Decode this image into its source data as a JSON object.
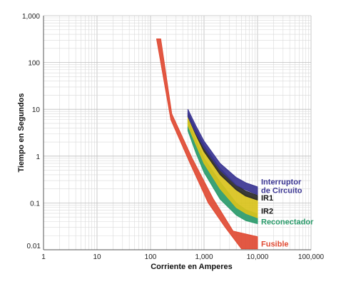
{
  "chart_data": {
    "type": "area",
    "xlabel": "Corriente en Amperes",
    "ylabel": "Tiempo en Segundos",
    "x_scale": "log",
    "y_scale": "log",
    "xlim": [
      1,
      100000
    ],
    "ylim": [
      0.01,
      1000
    ],
    "x_ticks": [
      {
        "value": 1,
        "label": "1"
      },
      {
        "value": 10,
        "label": "10"
      },
      {
        "value": 100,
        "label": "100"
      },
      {
        "value": 1000,
        "label": "1,000"
      },
      {
        "value": 10000,
        "label": "10,000"
      },
      {
        "value": 100000,
        "label": "100,000"
      }
    ],
    "y_ticks": [
      {
        "value": 1000,
        "label": "1,000"
      },
      {
        "value": 100,
        "label": "100"
      },
      {
        "value": 10,
        "label": "10"
      },
      {
        "value": 1,
        "label": "1"
      },
      {
        "value": 0.1,
        "label": "0.1"
      },
      {
        "value": 0.01,
        "label": "0.01"
      }
    ],
    "grid": true,
    "series": [
      {
        "name": "Fusible",
        "color": "#e04a33",
        "upper": [
          [
            155,
            320
          ],
          [
            250,
            8
          ],
          [
            600,
            0.9
          ],
          [
            1500,
            0.12
          ],
          [
            3500,
            0.025
          ],
          [
            10000,
            0.019
          ]
        ],
        "lower": [
          [
            130,
            320
          ],
          [
            240,
            6
          ],
          [
            550,
            0.7
          ],
          [
            1200,
            0.1
          ],
          [
            2500,
            0.03
          ],
          [
            5000,
            0.0105
          ],
          [
            10000,
            0.0105
          ]
        ]
      },
      {
        "name": "Reconectador",
        "color": "#2a9a6a",
        "upper": [
          [
            500,
            6
          ],
          [
            700,
            2.2
          ],
          [
            1000,
            0.9
          ],
          [
            2000,
            0.28
          ],
          [
            4000,
            0.1
          ],
          [
            6000,
            0.072
          ],
          [
            10000,
            0.058
          ]
        ],
        "lower": [
          [
            500,
            3.5
          ],
          [
            700,
            1.2
          ],
          [
            1000,
            0.45
          ],
          [
            2000,
            0.12
          ],
          [
            4000,
            0.055
          ],
          [
            6000,
            0.042
          ],
          [
            10000,
            0.036
          ]
        ]
      },
      {
        "name": "IR2",
        "color": "#d9c21c",
        "upper": [
          [
            500,
            7.5
          ],
          [
            700,
            3
          ],
          [
            1000,
            1.3
          ],
          [
            2000,
            0.42
          ],
          [
            4000,
            0.2
          ],
          [
            6000,
            0.15
          ],
          [
            10000,
            0.12
          ]
        ],
        "lower": [
          [
            500,
            4.5
          ],
          [
            700,
            1.8
          ],
          [
            1000,
            0.7
          ],
          [
            2000,
            0.2
          ],
          [
            4000,
            0.08
          ],
          [
            6000,
            0.06
          ],
          [
            10000,
            0.048
          ]
        ]
      },
      {
        "name": "IR1",
        "color": "#2a2a2a",
        "upper": [
          [
            500,
            8.5
          ],
          [
            700,
            3.8
          ],
          [
            1000,
            1.7
          ],
          [
            2000,
            0.55
          ],
          [
            4000,
            0.24
          ],
          [
            6000,
            0.18
          ],
          [
            10000,
            0.145
          ]
        ],
        "lower": [
          [
            500,
            7
          ],
          [
            700,
            2.9
          ],
          [
            1000,
            1.25
          ],
          [
            2000,
            0.4
          ],
          [
            4000,
            0.19
          ],
          [
            6000,
            0.14
          ],
          [
            10000,
            0.115
          ]
        ]
      },
      {
        "name": "Interruptor de Circuito",
        "color": "#3a3592",
        "upper": [
          [
            500,
            10
          ],
          [
            700,
            4.5
          ],
          [
            1000,
            2.1
          ],
          [
            2000,
            0.7
          ],
          [
            4000,
            0.35
          ],
          [
            6000,
            0.27
          ],
          [
            10000,
            0.22
          ]
        ],
        "lower": [
          [
            500,
            7
          ],
          [
            700,
            3.1
          ],
          [
            1000,
            1.5
          ],
          [
            2000,
            0.5
          ],
          [
            4000,
            0.24
          ],
          [
            6000,
            0.19
          ],
          [
            10000,
            0.15
          ]
        ]
      }
    ],
    "legend": [
      {
        "key": "interruptor",
        "lines": [
          "Interruptor",
          "de Circuito"
        ],
        "color": "#3a3592",
        "anchor_y": 0.23
      },
      {
        "key": "ir1",
        "lines": [
          "IR1"
        ],
        "color": "#111111",
        "anchor_y": 0.13
      },
      {
        "key": "ir2",
        "lines": [
          "IR2"
        ],
        "color": "#111111",
        "anchor_y": 0.068
      },
      {
        "key": "reconectador",
        "lines": [
          "Reconectador"
        ],
        "color": "#2a9a6a",
        "anchor_y": 0.04
      },
      {
        "key": "fusible",
        "lines": [
          "Fusible"
        ],
        "color": "#e04a33",
        "anchor_y": 0.0135
      }
    ]
  }
}
